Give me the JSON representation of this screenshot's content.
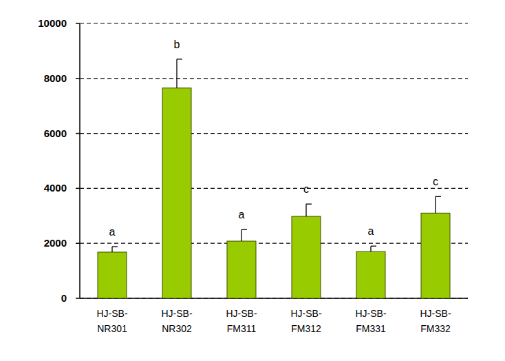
{
  "chart_data": {
    "type": "bar",
    "categories": [
      "HJ-SB-NR301",
      "HJ-SB-NR302",
      "HJ-SB-FM311",
      "HJ-SB-FM312",
      "HJ-SB-FM331",
      "HJ-SB-FM332"
    ],
    "values": [
      1680,
      7650,
      2080,
      2980,
      1700,
      3100
    ],
    "errors": [
      200,
      1050,
      420,
      450,
      200,
      600
    ],
    "annotations": [
      "a",
      "b",
      "a",
      "c",
      "a",
      "c"
    ],
    "color": "#99cc00",
    "ylim": [
      0,
      10000
    ],
    "yticks": [
      0,
      2000,
      4000,
      6000,
      8000,
      10000
    ],
    "grid": true
  }
}
